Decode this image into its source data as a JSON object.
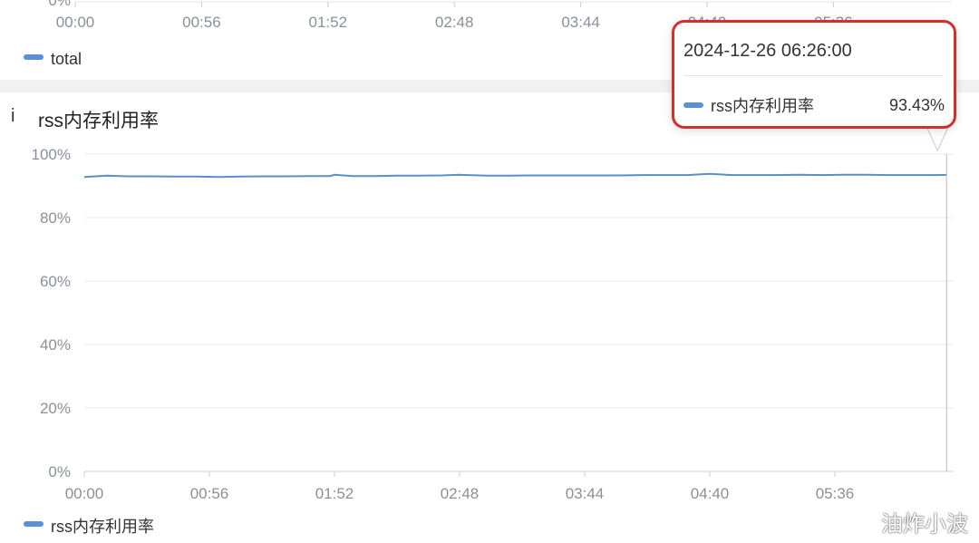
{
  "top_panel": {
    "y_tick_partial": "0%",
    "x_ticks": [
      "00:00",
      "00:56",
      "01:52",
      "02:48",
      "03:44",
      "04:40",
      "05:36"
    ],
    "legend": "total"
  },
  "colors": {
    "series": "#5b8fd6",
    "line": "#5a8fc8",
    "highlight_border": "#d32f2f"
  },
  "info_icon": "i",
  "chart_data": {
    "type": "line",
    "title": "rss内存利用率",
    "ylim": [
      0,
      100
    ],
    "y_ticks": [
      "0%",
      "20%",
      "40%",
      "60%",
      "80%",
      "100%"
    ],
    "y_tick_values": [
      0,
      20,
      40,
      60,
      80,
      100
    ],
    "x_ticks": [
      "00:00",
      "00:56",
      "01:52",
      "02:48",
      "03:44",
      "04:40",
      "05:36"
    ],
    "x_tick_minutes": [
      0,
      56,
      112,
      168,
      224,
      280,
      336
    ],
    "grid": true,
    "legend_position": "bottom-left",
    "series": [
      {
        "name": "rss内存利用率",
        "x": [
          "00:00",
          "00:10",
          "00:20",
          "00:30",
          "00:40",
          "00:50",
          "01:00",
          "01:10",
          "01:20",
          "01:30",
          "01:40",
          "01:50",
          "01:52",
          "02:00",
          "02:10",
          "02:20",
          "02:30",
          "02:40",
          "02:48",
          "03:00",
          "03:10",
          "03:20",
          "03:30",
          "03:40",
          "03:50",
          "04:00",
          "04:10",
          "04:20",
          "04:30",
          "04:40",
          "04:50",
          "05:00",
          "05:10",
          "05:20",
          "05:30",
          "05:40",
          "05:50",
          "06:00",
          "06:10",
          "06:20",
          "06:26"
        ],
        "values": [
          92.8,
          93.2,
          93.0,
          93.0,
          92.9,
          92.9,
          92.8,
          92.9,
          93.0,
          93.0,
          93.1,
          93.1,
          93.5,
          93.1,
          93.1,
          93.2,
          93.2,
          93.3,
          93.5,
          93.2,
          93.2,
          93.3,
          93.3,
          93.3,
          93.3,
          93.3,
          93.4,
          93.4,
          93.4,
          93.8,
          93.4,
          93.4,
          93.4,
          93.5,
          93.4,
          93.5,
          93.5,
          93.4,
          93.4,
          93.4,
          93.43
        ]
      }
    ]
  },
  "tooltip": {
    "datetime": "2024-12-26 06:26:00",
    "series_name": "rss内存利用率",
    "value": "93.43%",
    "x_minutes": 386
  },
  "watermark": "油炸小波"
}
